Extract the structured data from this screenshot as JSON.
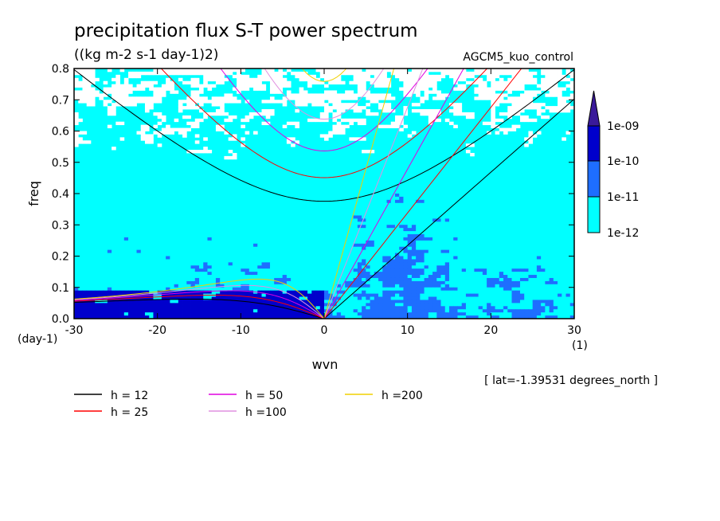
{
  "chart_data": {
    "type": "heatmap",
    "title": "precipitation flux S-T power spectrum",
    "subtitle": "((kg m-2 s-1 day-1)2)",
    "experiment": "AGCM5_kuo_control",
    "xlabel": "wvn",
    "ylabel": "freq",
    "x_unit": "(1)",
    "y_unit": "(day-1)",
    "xlim": [
      -30,
      30
    ],
    "ylim": [
      0,
      0.8
    ],
    "xticks": [
      -30,
      -20,
      -10,
      0,
      10,
      20,
      30
    ],
    "yticks": [
      0.0,
      0.1,
      0.2,
      0.3,
      0.4,
      0.5,
      0.6,
      0.7,
      0.8
    ],
    "xtick_labels": [
      "-30",
      "-20",
      "-10",
      "0",
      "10",
      "20",
      "30"
    ],
    "ytick_labels": [
      "0.0",
      "0.1",
      "0.2",
      "0.3",
      "0.4",
      "0.5",
      "0.6",
      "0.7",
      "0.8"
    ],
    "colorbar": {
      "labels": [
        "1e-09",
        "1e-10",
        "1e-11",
        "1e-12"
      ],
      "colors": [
        "#000099",
        "#0000cc",
        "#1e6eff",
        "#00ffff",
        "#ffffff"
      ],
      "extend": "max"
    },
    "dispersion_curves": [
      {
        "label": "h = 12",
        "h": 12,
        "color": "#000000"
      },
      {
        "label": "h = 25",
        "h": 25,
        "color": "#ff0000"
      },
      {
        "label": "h = 50",
        "h": 50,
        "color": "#e000e0"
      },
      {
        "label": "h =100",
        "h": 100,
        "color": "#e090e0"
      },
      {
        "label": "h =200",
        "h": 200,
        "color": "#f0d000"
      }
    ],
    "annotation": "[ lat=-1.39531 degrees_north ]"
  }
}
